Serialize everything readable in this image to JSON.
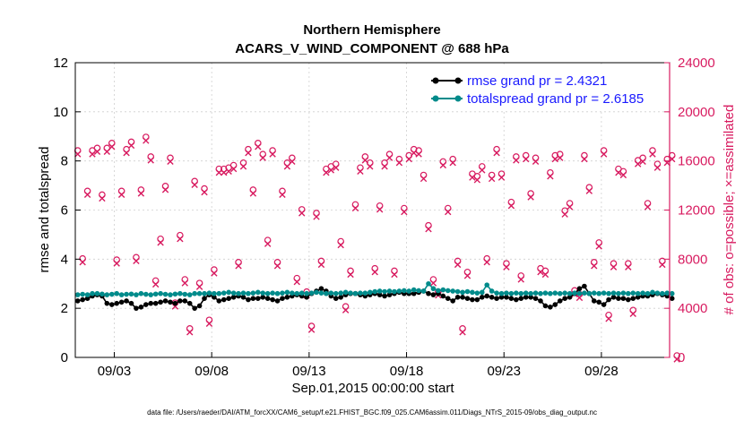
{
  "chart_data": {
    "type": "line",
    "title": "Northern Hemisphere",
    "subtitle": "ACARS_V_WIND_COMPONENT @ 688 hPa",
    "xlabel": "Sep.01,2015 00:00:00 start",
    "ylabel": "rmse and totalspread",
    "ylabel_right": "# of obs: o=possible; ×=assimilated",
    "x_tick_labels": [
      "09/03",
      "09/08",
      "09/13",
      "09/18",
      "09/23",
      "09/28"
    ],
    "x_tick_days": [
      2,
      7,
      12,
      17,
      22,
      27
    ],
    "xlim": [
      0,
      30.5
    ],
    "ylim": [
      0,
      12
    ],
    "y_ticks": [
      0,
      2,
      4,
      6,
      8,
      10,
      12
    ],
    "ylim_right": [
      0,
      24000
    ],
    "y_ticks_right": [
      0,
      4000,
      8000,
      12000,
      16000,
      20000,
      24000
    ],
    "legend_position": "top-right",
    "colors": {
      "rmse": "#000000",
      "totalspread": "#008b8b",
      "obs": "#d81b60",
      "legend_text": "#1a1aff",
      "right_axis": "#d81b60"
    },
    "series": [
      {
        "name": "rmse grand pr = 2.4321",
        "axis": "left",
        "values": [
          2.3,
          2.35,
          2.4,
          2.5,
          2.55,
          2.5,
          2.2,
          2.15,
          2.2,
          2.25,
          2.3,
          2.2,
          2.0,
          2.05,
          2.15,
          2.2,
          2.2,
          2.25,
          2.3,
          2.25,
          2.2,
          2.3,
          2.3,
          2.2,
          2.0,
          2.1,
          2.4,
          2.55,
          2.45,
          2.3,
          2.35,
          2.4,
          2.45,
          2.5,
          2.45,
          2.35,
          2.4,
          2.4,
          2.45,
          2.4,
          2.35,
          2.3,
          2.4,
          2.45,
          2.5,
          2.55,
          2.5,
          2.45,
          2.6,
          2.7,
          2.8,
          2.7,
          2.5,
          2.4,
          2.45,
          2.55,
          2.6,
          2.6,
          2.55,
          2.5,
          2.55,
          2.6,
          2.55,
          2.5,
          2.55,
          2.6,
          2.65,
          2.6,
          2.6,
          2.6,
          2.65,
          2.7,
          2.6,
          2.55,
          2.6,
          2.5,
          2.4,
          2.3,
          2.45,
          2.45,
          2.4,
          2.35,
          2.35,
          2.45,
          2.5,
          2.45,
          2.4,
          2.45,
          2.45,
          2.4,
          2.35,
          2.4,
          2.45,
          2.45,
          2.4,
          2.3,
          2.1,
          2.05,
          2.15,
          2.3,
          2.4,
          2.45,
          2.6,
          2.8,
          2.9,
          2.6,
          2.3,
          2.25,
          2.15,
          2.35,
          2.45,
          2.4,
          2.4,
          2.35,
          2.4,
          2.45,
          2.5,
          2.5,
          2.55,
          2.6,
          2.55,
          2.5,
          2.4
        ]
      },
      {
        "name": "totalspread grand pr = 2.6185",
        "axis": "left",
        "values": [
          2.55,
          2.57,
          2.55,
          2.6,
          2.6,
          2.58,
          2.55,
          2.57,
          2.6,
          2.55,
          2.57,
          2.58,
          2.55,
          2.6,
          2.57,
          2.55,
          2.58,
          2.6,
          2.57,
          2.55,
          2.58,
          2.6,
          2.57,
          2.55,
          2.6,
          2.6,
          2.6,
          2.62,
          2.6,
          2.6,
          2.62,
          2.65,
          2.62,
          2.6,
          2.62,
          2.6,
          2.62,
          2.65,
          2.62,
          2.6,
          2.62,
          2.6,
          2.62,
          2.65,
          2.62,
          2.6,
          2.62,
          2.6,
          2.62,
          2.65,
          2.62,
          2.6,
          2.62,
          2.6,
          2.62,
          2.65,
          2.62,
          2.6,
          2.62,
          2.62,
          2.65,
          2.68,
          2.7,
          2.68,
          2.7,
          2.68,
          2.7,
          2.72,
          2.7,
          2.75,
          2.72,
          2.7,
          3.0,
          2.8,
          2.72,
          2.75,
          2.72,
          2.7,
          2.68,
          2.65,
          2.68,
          2.65,
          2.62,
          2.65,
          2.95,
          2.7,
          2.62,
          2.6,
          2.62,
          2.6,
          2.62,
          2.6,
          2.62,
          2.6,
          2.62,
          2.6,
          2.62,
          2.6,
          2.62,
          2.6,
          2.62,
          2.6,
          2.62,
          2.6,
          2.62,
          2.6,
          2.62,
          2.6,
          2.62,
          2.6,
          2.62,
          2.6,
          2.62,
          2.6,
          2.62,
          2.6,
          2.62,
          2.6,
          2.65,
          2.62,
          2.6,
          2.62,
          2.6
        ]
      },
      {
        "name": "# of obs possible / assimilated",
        "axis": "right",
        "values": [
          16700,
          7900,
          13400,
          16700,
          16900,
          13100,
          16900,
          17300,
          7800,
          13400,
          16800,
          17400,
          8000,
          13500,
          17800,
          16200,
          6100,
          9500,
          13800,
          16100,
          4300,
          9800,
          6200,
          2200,
          14200,
          5900,
          13600,
          2900,
          7000,
          15200,
          15200,
          15300,
          15500,
          7600,
          15700,
          16800,
          13500,
          17300,
          16400,
          9400,
          16700,
          7600,
          13400,
          15700,
          16100,
          6300,
          11900,
          5200,
          2400,
          11600,
          7700,
          15200,
          15400,
          15600,
          9300,
          4000,
          6900,
          12300,
          15300,
          16200,
          15700,
          7100,
          12200,
          15700,
          16400,
          6900,
          16000,
          12000,
          16300,
          16800,
          16700,
          14700,
          10600,
          6200,
          5200,
          15800,
          12000,
          16000,
          7700,
          2200,
          6800,
          14800,
          14600,
          15400,
          7900,
          14700,
          16800,
          14800,
          7500,
          12500,
          16200,
          6500,
          16300,
          13200,
          16100,
          7100,
          6900,
          14900,
          16300,
          16400,
          11800,
          12400,
          5300,
          5000,
          16300,
          13700,
          7600,
          9200,
          16700,
          3300,
          7500,
          15200,
          15000,
          7500,
          3700,
          15900,
          16100,
          12400,
          16700,
          15600,
          7700,
          16000,
          16300,
          0
        ]
      }
    ],
    "footer": "data file: /Users/raeder/DAI/ATM_forcXX/CAM6_setup/f.e21.FHIST_BGC.f09_025.CAM6assim.011/Diags_NTrS_2015-09/obs_diag_output.nc"
  }
}
